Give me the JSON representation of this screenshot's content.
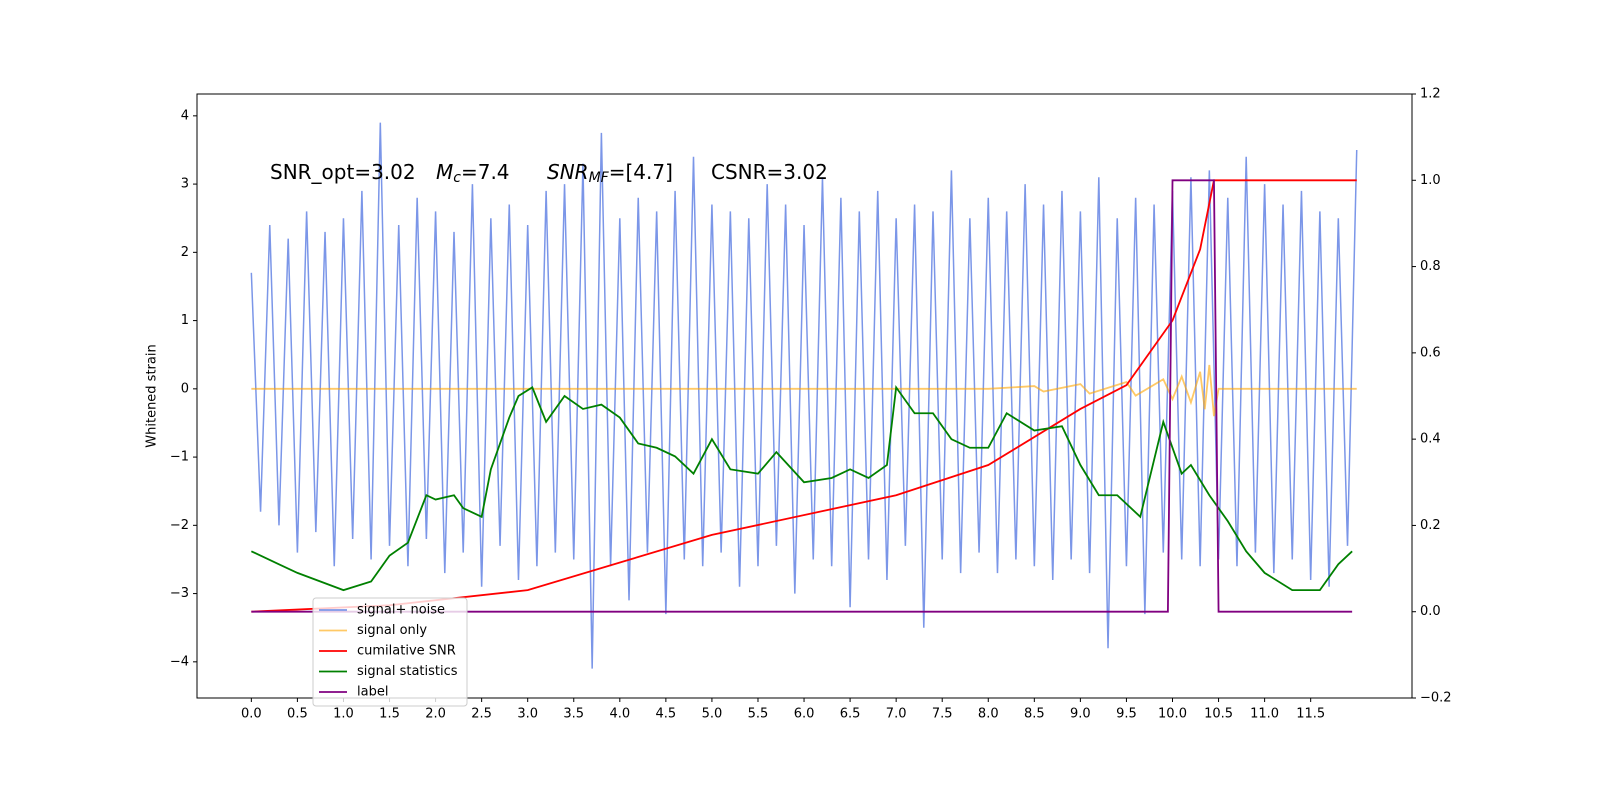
{
  "chart_data": {
    "type": "line",
    "ylabel": "Whitened strain",
    "annotations": [
      {
        "parts": [
          "SNR_opt=3.02"
        ]
      },
      {
        "parts": [
          "M",
          "c",
          "=7.4"
        ]
      },
      {
        "parts": [
          "SNR",
          "MF",
          "=[4.7]"
        ]
      },
      {
        "parts": [
          "CSNR=3.02"
        ]
      }
    ],
    "xlim": [
      -0.59,
      12.6
    ],
    "ylim": [
      -4.53,
      4.32
    ],
    "y2lim": [
      -0.2,
      1.2
    ],
    "xticks": [
      {
        "value": 0,
        "label": "0.0"
      },
      {
        "value": 0.5,
        "label": "0.5"
      },
      {
        "value": 1,
        "label": "1.0"
      },
      {
        "value": 1.5,
        "label": "1.5"
      },
      {
        "value": 2,
        "label": "2.0"
      },
      {
        "value": 2.5,
        "label": "2.5"
      },
      {
        "value": 3,
        "label": "3.0"
      },
      {
        "value": 3.5,
        "label": "3.5"
      },
      {
        "value": 4,
        "label": "4.0"
      },
      {
        "value": 4.5,
        "label": "4.5"
      },
      {
        "value": 5,
        "label": "5.0"
      },
      {
        "value": 5.5,
        "label": "5.5"
      },
      {
        "value": 6,
        "label": "6.0"
      },
      {
        "value": 6.5,
        "label": "6.5"
      },
      {
        "value": 7,
        "label": "7.0"
      },
      {
        "value": 7.5,
        "label": "7.5"
      },
      {
        "value": 8,
        "label": "8.0"
      },
      {
        "value": 8.5,
        "label": "8.5"
      },
      {
        "value": 9,
        "label": "9.0"
      },
      {
        "value": 9.5,
        "label": "9.5"
      },
      {
        "value": 10,
        "label": "10.0"
      },
      {
        "value": 10.5,
        "label": "10.5"
      },
      {
        "value": 11,
        "label": "11.0"
      },
      {
        "value": 11.5,
        "label": "11.5"
      }
    ],
    "yticks": [
      {
        "value": -4,
        "label": "−4"
      },
      {
        "value": -3,
        "label": "−3"
      },
      {
        "value": -2,
        "label": "−2"
      },
      {
        "value": -1,
        "label": "−1"
      },
      0,
      1,
      2,
      3,
      4
    ],
    "y2ticks": [
      {
        "value": -0.2,
        "label": "−0.2"
      },
      {
        "value": 0,
        "label": "0.0"
      },
      {
        "value": 0.2,
        "label": "0.2"
      },
      {
        "value": 0.4,
        "label": "0.4"
      },
      {
        "value": 0.6,
        "label": "0.6"
      },
      {
        "value": 0.8,
        "label": "0.8"
      },
      {
        "value": 1,
        "label": "1.0"
      },
      {
        "value": 1.2,
        "label": "1.2"
      }
    ],
    "legend": "lower left",
    "series": [
      {
        "name": "signal+ noise",
        "color": "#7b96e8",
        "axis": "y",
        "x": [
          0,
          0.1,
          0.2,
          0.3,
          0.4,
          0.5,
          0.6,
          0.7,
          0.8,
          0.9,
          1,
          1.1,
          1.2,
          1.3,
          1.4,
          1.5,
          1.6,
          1.7,
          1.8,
          1.9,
          2,
          2.1,
          2.2,
          2.3,
          2.4,
          2.5,
          2.6,
          2.7,
          2.8,
          2.9,
          3,
          3.1,
          3.2,
          3.3,
          3.4,
          3.5,
          3.6,
          3.7,
          3.8,
          3.9,
          4,
          4.1,
          4.2,
          4.3,
          4.4,
          4.5,
          4.6,
          4.7,
          4.8,
          4.9,
          5,
          5.1,
          5.2,
          5.3,
          5.4,
          5.5,
          5.6,
          5.7,
          5.8,
          5.9,
          6,
          6.1,
          6.2,
          6.3,
          6.4,
          6.5,
          6.6,
          6.7,
          6.8,
          6.9,
          7,
          7.1,
          7.2,
          7.3,
          7.4,
          7.5,
          7.6,
          7.7,
          7.8,
          7.9,
          8,
          8.1,
          8.2,
          8.3,
          8.4,
          8.5,
          8.6,
          8.7,
          8.8,
          8.9,
          9,
          9.1,
          9.2,
          9.3,
          9.4,
          9.5,
          9.6,
          9.7,
          9.8,
          9.9,
          10,
          10.1,
          10.2,
          10.3,
          10.4,
          10.5,
          10.6,
          10.7,
          10.8,
          10.9,
          11,
          11.1,
          11.2,
          11.3,
          11.4,
          11.5,
          11.6,
          11.7,
          11.8,
          11.9,
          12
        ],
        "values": [
          1.7,
          -1.8,
          2.4,
          -2.0,
          2.2,
          -2.4,
          2.6,
          -2.1,
          2.3,
          -2.6,
          2.5,
          -2.2,
          2.9,
          -2.5,
          3.9,
          -2.3,
          2.4,
          -2.6,
          2.8,
          -2.2,
          2.6,
          -2.7,
          2.3,
          -2.4,
          3.0,
          -2.9,
          2.5,
          -2.3,
          2.7,
          -2.8,
          2.4,
          -2.6,
          2.9,
          -2.4,
          3.0,
          -2.5,
          3.3,
          -4.1,
          3.75,
          -2.6,
          2.5,
          -3.1,
          2.8,
          -2.4,
          2.6,
          -3.3,
          2.9,
          -2.5,
          3.4,
          -2.6,
          2.7,
          -2.4,
          2.6,
          -2.9,
          2.5,
          -2.6,
          3.0,
          -2.3,
          2.7,
          -3.0,
          2.4,
          -2.5,
          3.1,
          -2.6,
          2.8,
          -3.2,
          2.6,
          -2.5,
          2.9,
          -2.8,
          2.5,
          -2.3,
          2.7,
          -3.5,
          2.6,
          -2.5,
          3.2,
          -2.7,
          2.5,
          -2.4,
          2.8,
          -2.7,
          2.6,
          -2.5,
          3.0,
          -2.6,
          2.7,
          -2.8,
          2.9,
          -2.5,
          2.6,
          -2.7,
          3.1,
          -3.8,
          2.5,
          -2.6,
          2.8,
          -3.3,
          2.7,
          -2.4,
          2.9,
          -2.5,
          3.1,
          -2.6,
          3.2,
          -2.5,
          2.8,
          -2.6,
          3.4,
          -2.4,
          3.0,
          -2.7,
          2.7,
          -2.5,
          2.9,
          -2.8,
          2.6,
          -2.9,
          2.5,
          -2.3,
          3.5
        ]
      },
      {
        "name": "signal only",
        "color": "#ffa500",
        "axis": "y",
        "x": [
          0,
          8,
          8.5,
          8.6,
          9,
          9.1,
          9.5,
          9.6,
          9.9,
          10,
          10.1,
          10.2,
          10.3,
          10.35,
          10.4,
          10.45,
          10.5,
          12
        ],
        "values": [
          0,
          0,
          0.04,
          -0.04,
          0.07,
          -0.07,
          0.1,
          -0.1,
          0.14,
          -0.15,
          0.18,
          -0.2,
          0.25,
          -0.3,
          0.35,
          -0.4,
          0,
          0
        ]
      },
      {
        "name": "cumilative SNR",
        "color": "#ff0000",
        "axis": "y2",
        "x": [
          0,
          1.5,
          3,
          5,
          7,
          8,
          9,
          9.5,
          10,
          10.3,
          10.45,
          12
        ],
        "values": [
          0,
          0.015,
          0.05,
          0.178,
          0.27,
          0.34,
          0.47,
          0.525,
          0.675,
          0.84,
          1,
          1
        ]
      },
      {
        "name": "signal statistics",
        "color": "#008000",
        "axis": "y2",
        "x": [
          0,
          0.3,
          0.5,
          1,
          1.3,
          1.5,
          1.7,
          1.9,
          2,
          2.2,
          2.3,
          2.5,
          2.6,
          2.8,
          2.9,
          3.05,
          3.2,
          3.4,
          3.6,
          3.8,
          4,
          4.2,
          4.4,
          4.6,
          4.8,
          5,
          5.2,
          5.5,
          5.7,
          6,
          6.3,
          6.5,
          6.7,
          6.9,
          7,
          7.2,
          7.4,
          7.6,
          7.8,
          8,
          8.2,
          8.5,
          8.8,
          9,
          9.2,
          9.4,
          9.65,
          9.9,
          10.1,
          10.2,
          10.4,
          10.6,
          10.8,
          11,
          11.3,
          11.6,
          11.8,
          11.95
        ],
        "values": [
          0.14,
          0.11,
          0.09,
          0.05,
          0.07,
          0.13,
          0.16,
          0.27,
          0.26,
          0.27,
          0.24,
          0.22,
          0.33,
          0.45,
          0.5,
          0.52,
          0.44,
          0.5,
          0.47,
          0.48,
          0.45,
          0.39,
          0.38,
          0.36,
          0.32,
          0.4,
          0.33,
          0.32,
          0.37,
          0.3,
          0.31,
          0.33,
          0.31,
          0.34,
          0.52,
          0.46,
          0.46,
          0.4,
          0.38,
          0.38,
          0.46,
          0.42,
          0.43,
          0.34,
          0.27,
          0.27,
          0.22,
          0.44,
          0.32,
          0.34,
          0.27,
          0.21,
          0.14,
          0.09,
          0.05,
          0.05,
          0.11,
          0.14
        ]
      },
      {
        "name": "label",
        "color": "#800080",
        "axis": "y2",
        "x": [
          0,
          9.95,
          10,
          10.45,
          10.5,
          11.95
        ],
        "values": [
          0,
          0,
          1,
          1,
          0,
          0
        ]
      }
    ]
  }
}
